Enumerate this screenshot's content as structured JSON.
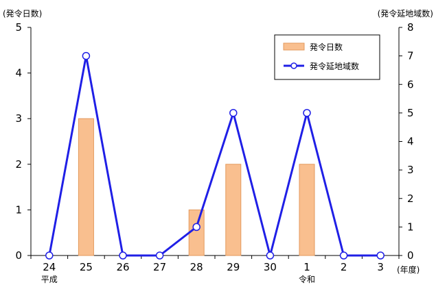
{
  "chart_data": {
    "type": "bar+line",
    "categories": [
      "24",
      "25",
      "26",
      "27",
      "28",
      "29",
      "30",
      "1",
      "2",
      "3"
    ],
    "era_labels": [
      {
        "category": "24",
        "text": "平成"
      },
      {
        "category": "1",
        "text": "令和"
      }
    ],
    "series": [
      {
        "name": "発令日数",
        "kind": "bar",
        "axis": "left",
        "values": [
          0,
          3,
          0,
          0,
          1,
          2,
          0,
          2,
          0,
          0
        ]
      },
      {
        "name": "発令延地域数",
        "kind": "line",
        "axis": "right",
        "values": [
          0,
          7,
          0,
          0,
          1,
          5,
          0,
          5,
          0,
          0
        ]
      }
    ],
    "y_left": {
      "label": "(発令日数)",
      "min": 0,
      "max": 5,
      "ticks": [
        0,
        1,
        2,
        3,
        4,
        5
      ]
    },
    "y_right": {
      "label": "(発令延地域数)",
      "min": 0,
      "max": 8,
      "ticks": [
        0,
        1,
        2,
        3,
        4,
        5,
        6,
        7,
        8
      ]
    },
    "x_unit": "(年度)",
    "legend_position": "top-right",
    "grid": false,
    "colors": {
      "bar_fill": "#f9bf8f",
      "bar_stroke": "#e39a5c",
      "line": "#1f1fe6",
      "marker_fill": "#ffffff",
      "axis": "#000000"
    }
  }
}
